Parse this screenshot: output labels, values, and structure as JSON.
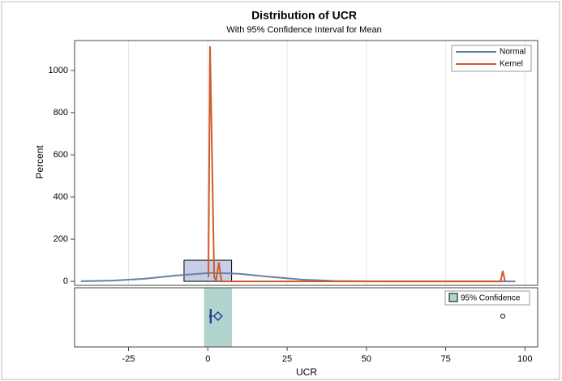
{
  "chart_data": {
    "type": "histogram",
    "title": "Distribution of UCR",
    "subtitle": "With 95% Confidence Interval for Mean",
    "x_label": "UCR",
    "y_label": "Percent",
    "bins": [
      -7.5,
      7.5
    ],
    "counts": [
      100
    ],
    "bar_color": "#c6cfe6",
    "xlim": [
      -42,
      104
    ],
    "ylim": [
      -19,
      1142
    ],
    "xticks": [
      -25,
      0,
      25,
      50,
      75,
      100
    ],
    "yticks": [
      0,
      200,
      400,
      600,
      800,
      1000
    ],
    "grid": true,
    "legend": "top-right",
    "series": [
      {
        "name": "Normal",
        "color": "#6a7fa3",
        "x": [
          -40,
          -30,
          -20,
          -10,
          0,
          3,
          10,
          20,
          30,
          40,
          50,
          60,
          97
        ],
        "values": [
          0.7,
          3.6,
          12.3,
          27.5,
          39.2,
          40,
          35.9,
          21.1,
          7.9,
          1.9,
          0.3,
          0,
          0
        ]
      },
      {
        "name": "Kernel",
        "color": "#d05b2b",
        "x": [
          0.2,
          0.7,
          2.0,
          2.6,
          3.5,
          4.3,
          5.5,
          92.3,
          93,
          93.7
        ],
        "values": [
          20,
          1115,
          20,
          5,
          90,
          0,
          0,
          0,
          50,
          0
        ]
      }
    ],
    "box": {
      "whisker_low": 0.4,
      "q1": 0.6,
      "median": 0.9,
      "q3": 1.2,
      "whisker_high": 1.5,
      "mean": 3.2,
      "outliers": [
        93
      ],
      "color": "#1f3f8f"
    },
    "confidence": {
      "name": "95% Confidence",
      "lower": -1.2,
      "upper": 7.6,
      "color": "#b2d4cf"
    }
  }
}
